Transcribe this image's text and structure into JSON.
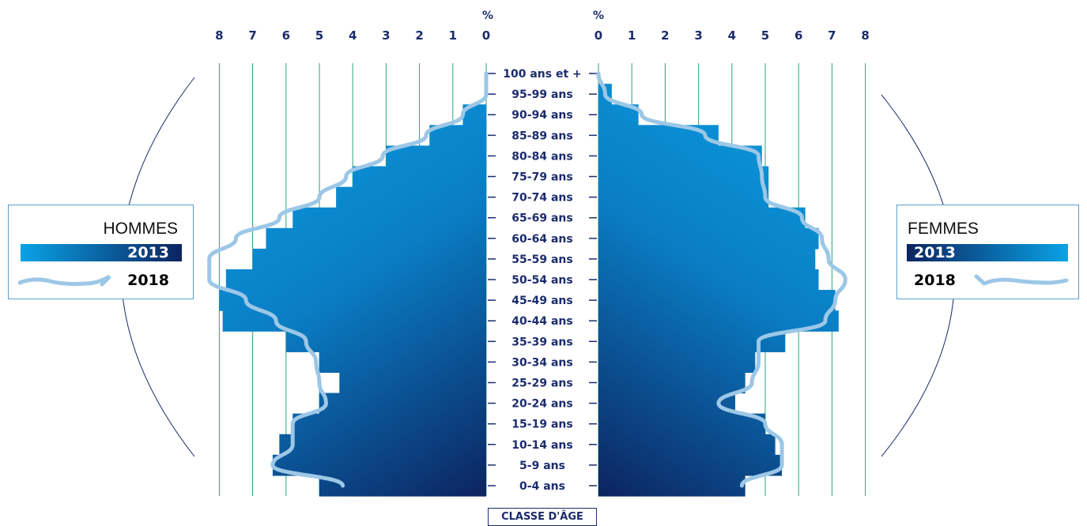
{
  "colors": {
    "axis_text": "#1c2c6b",
    "grid": "#2aa37c",
    "bar_light": "#0097dc",
    "bar_dark": "#0c2460",
    "line_2018": "#9cc7e6",
    "legend_border": "#5aa0c8"
  },
  "chart_data": {
    "type": "bar",
    "orientation": "horizontal-pyramid",
    "axis_unit": "%",
    "xlim": [
      0,
      8
    ],
    "x_ticks": [
      "0",
      "1",
      "2",
      "3",
      "4",
      "5",
      "6",
      "7",
      "8"
    ],
    "categories": [
      "0-4 ans",
      "5-9 ans",
      "10-14 ans",
      "15-19 ans",
      "20-24 ans",
      "25-29 ans",
      "30-34 ans",
      "35-39 ans",
      "40-44 ans",
      "45-49 ans",
      "50-54 ans",
      "55-59 ans",
      "60-64 ans",
      "65-69 ans",
      "70-74 ans",
      "75-79 ans",
      "80-84 ans",
      "85-89 ans",
      "90-94 ans",
      "95-99 ans",
      "100 ans et +"
    ],
    "age_axis_title": "CLASSE D'ÂGE",
    "grid": true,
    "left_panel": {
      "label": "HOMMES",
      "series": [
        {
          "name": "2013",
          "style": "bars",
          "values": [
            5.0,
            6.4,
            6.2,
            5.8,
            5.0,
            4.4,
            5.0,
            6.0,
            7.9,
            8.0,
            7.8,
            7.0,
            6.6,
            5.8,
            4.5,
            4.0,
            3.0,
            1.7,
            0.7,
            0.0,
            0.0
          ]
        },
        {
          "name": "2018",
          "style": "line",
          "values": [
            4.3,
            6.4,
            5.8,
            5.8,
            4.8,
            5.0,
            5.1,
            5.4,
            6.3,
            7.2,
            8.3,
            8.3,
            7.5,
            6.2,
            5.0,
            4.2,
            3.1,
            1.8,
            0.7,
            0.0,
            0.0
          ]
        }
      ]
    },
    "right_panel": {
      "label": "FEMMES",
      "series": [
        {
          "name": "2013",
          "style": "bars",
          "values": [
            4.4,
            5.5,
            5.3,
            5.0,
            4.1,
            4.4,
            4.7,
            5.6,
            7.2,
            7.1,
            6.6,
            6.5,
            6.6,
            6.2,
            5.1,
            5.1,
            4.9,
            3.6,
            1.2,
            0.4,
            0.0
          ]
        },
        {
          "name": "2018",
          "style": "line",
          "values": [
            4.3,
            5.5,
            5.5,
            5.0,
            3.6,
            4.6,
            4.8,
            4.8,
            6.8,
            7.1,
            7.4,
            6.9,
            6.7,
            6.1,
            5.0,
            4.9,
            4.8,
            3.2,
            1.3,
            0.2,
            0.0
          ]
        }
      ]
    }
  },
  "legend_left": {
    "title": "HOMMES",
    "year_bar": "2013",
    "year_line": "2018"
  },
  "legend_right": {
    "title": "FEMMES",
    "year_bar": "2013",
    "year_line": "2018"
  }
}
